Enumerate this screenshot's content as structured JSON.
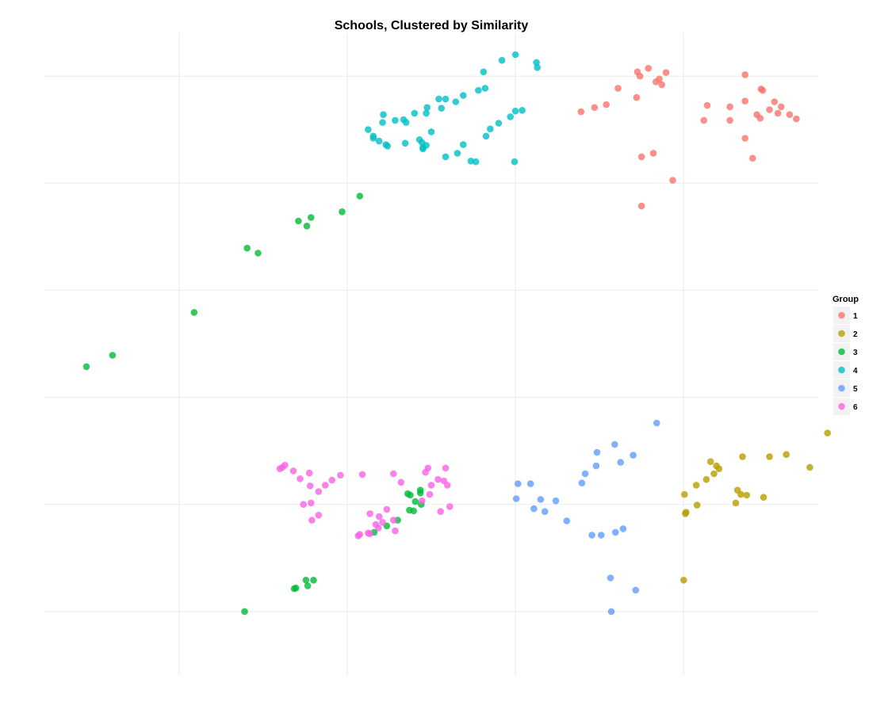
{
  "chart_data": {
    "type": "scatter",
    "title": "Schools, Clustered by Similarity",
    "xlabel": "",
    "ylabel": "",
    "xlim": [
      -4.6,
      4.6
    ],
    "ylim": [
      -4.4,
      4.6
    ],
    "grid": true,
    "x_gridlines": [
      -3,
      -1,
      1,
      3
    ],
    "y_gridlines": [
      -3.5,
      -2,
      -0.5,
      1,
      2.5,
      4
    ],
    "legend": {
      "title": "Group",
      "position": "right",
      "entries": [
        {
          "label": "1",
          "color": "#F8766D"
        },
        {
          "label": "2",
          "color": "#B79F00"
        },
        {
          "label": "3",
          "color": "#00BA38"
        },
        {
          "label": "4",
          "color": "#00BFC4"
        },
        {
          "label": "5",
          "color": "#619CFF"
        },
        {
          "label": "6",
          "color": "#F564E3"
        }
      ]
    },
    "series": [
      {
        "name": "1",
        "color": "#F8766D",
        "points": [
          [
            2.45,
            4.06
          ],
          [
            2.58,
            4.11
          ],
          [
            2.48,
            4.0
          ],
          [
            2.79,
            4.05
          ],
          [
            2.71,
            3.96
          ],
          [
            2.67,
            3.92
          ],
          [
            2.74,
            3.88
          ],
          [
            2.22,
            3.83
          ],
          [
            2.44,
            3.7
          ],
          [
            2.08,
            3.6
          ],
          [
            1.94,
            3.56
          ],
          [
            1.78,
            3.5
          ],
          [
            2.5,
            2.87
          ],
          [
            2.64,
            2.92
          ],
          [
            2.87,
            2.54
          ],
          [
            2.5,
            2.18
          ],
          [
            3.73,
            4.02
          ],
          [
            3.92,
            3.82
          ],
          [
            3.94,
            3.8
          ],
          [
            3.73,
            3.65
          ],
          [
            4.08,
            3.64
          ],
          [
            4.16,
            3.57
          ],
          [
            4.02,
            3.53
          ],
          [
            3.28,
            3.59
          ],
          [
            3.55,
            3.57
          ],
          [
            3.87,
            3.46
          ],
          [
            3.91,
            3.41
          ],
          [
            4.12,
            3.48
          ],
          [
            4.26,
            3.46
          ],
          [
            4.34,
            3.4
          ],
          [
            3.55,
            3.38
          ],
          [
            3.24,
            3.38
          ],
          [
            3.73,
            3.13
          ],
          [
            3.82,
            2.85
          ]
        ]
      },
      {
        "name": "2",
        "color": "#B79F00",
        "points": [
          [
            4.71,
            -1.0
          ],
          [
            4.22,
            -1.3
          ],
          [
            4.02,
            -1.33
          ],
          [
            3.7,
            -1.33
          ],
          [
            4.5,
            -1.48
          ],
          [
            3.32,
            -1.4
          ],
          [
            3.39,
            -1.46
          ],
          [
            3.42,
            -1.5
          ],
          [
            3.36,
            -1.57
          ],
          [
            3.27,
            -1.65
          ],
          [
            3.15,
            -1.73
          ],
          [
            3.01,
            -1.86
          ],
          [
            3.64,
            -1.8
          ],
          [
            3.68,
            -1.86
          ],
          [
            3.75,
            -1.87
          ],
          [
            3.95,
            -1.9
          ],
          [
            3.62,
            -1.98
          ],
          [
            3.16,
            -2.01
          ],
          [
            3.03,
            -2.11
          ],
          [
            3.02,
            -2.13
          ],
          [
            3.0,
            -3.06
          ]
        ]
      },
      {
        "name": "3",
        "color": "#00BA38",
        "points": [
          [
            -4.1,
            -0.07
          ],
          [
            -3.79,
            0.09
          ],
          [
            -2.82,
            0.69
          ],
          [
            -2.19,
            1.59
          ],
          [
            -2.06,
            1.52
          ],
          [
            -1.58,
            1.97
          ],
          [
            -1.48,
            1.9
          ],
          [
            -1.43,
            2.02
          ],
          [
            -1.06,
            2.1
          ],
          [
            -0.85,
            2.32
          ],
          [
            -0.13,
            -1.8
          ],
          [
            -0.13,
            -1.84
          ],
          [
            -0.19,
            -1.96
          ],
          [
            -0.25,
            -1.87
          ],
          [
            -0.28,
            -1.85
          ],
          [
            -0.26,
            -2.08
          ],
          [
            -0.12,
            -2.0
          ],
          [
            -0.21,
            -2.09
          ],
          [
            -0.4,
            -2.22
          ],
          [
            -0.53,
            -2.3
          ],
          [
            -0.68,
            -2.39
          ],
          [
            -1.4,
            -3.06
          ],
          [
            -1.49,
            -3.06
          ],
          [
            -1.47,
            -3.14
          ],
          [
            -1.61,
            -3.17
          ],
          [
            -1.63,
            -3.18
          ],
          [
            -2.22,
            -3.5
          ]
        ]
      },
      {
        "name": "4",
        "color": "#00BFC4",
        "points": [
          [
            1.0,
            4.3
          ],
          [
            0.84,
            4.22
          ],
          [
            0.62,
            4.06
          ],
          [
            0.64,
            3.83
          ],
          [
            0.56,
            3.8
          ],
          [
            0.38,
            3.73
          ],
          [
            0.29,
            3.64
          ],
          [
            0.09,
            3.68
          ],
          [
            0.17,
            3.68
          ],
          [
            0.12,
            3.55
          ],
          [
            -0.05,
            3.56
          ],
          [
            -0.06,
            3.48
          ],
          [
            -0.2,
            3.48
          ],
          [
            -0.33,
            3.39
          ],
          [
            -0.57,
            3.46
          ],
          [
            -0.43,
            3.38
          ],
          [
            -0.58,
            3.35
          ],
          [
            -0.75,
            3.25
          ],
          [
            -0.3,
            3.35
          ],
          [
            0.0,
            3.22
          ],
          [
            -0.14,
            3.11
          ],
          [
            -0.31,
            3.06
          ],
          [
            -0.11,
            3.07
          ],
          [
            -0.06,
            3.03
          ],
          [
            -0.1,
            3.0
          ],
          [
            -0.1,
            2.98
          ],
          [
            -0.69,
            3.16
          ],
          [
            -0.69,
            3.13
          ],
          [
            -0.62,
            3.09
          ],
          [
            -0.54,
            3.04
          ],
          [
            -0.52,
            3.02
          ],
          [
            1.25,
            4.19
          ],
          [
            1.26,
            4.12
          ],
          [
            1.08,
            3.52
          ],
          [
            1.0,
            3.51
          ],
          [
            0.94,
            3.43
          ],
          [
            0.8,
            3.34
          ],
          [
            0.7,
            3.26
          ],
          [
            0.65,
            3.16
          ],
          [
            0.38,
            3.04
          ],
          [
            0.31,
            2.92
          ],
          [
            0.17,
            2.87
          ],
          [
            0.53,
            2.8
          ],
          [
            0.47,
            2.81
          ],
          [
            0.99,
            2.8
          ]
        ]
      },
      {
        "name": "5",
        "color": "#619CFF",
        "points": [
          [
            2.68,
            -0.86
          ],
          [
            2.18,
            -1.16
          ],
          [
            1.97,
            -1.27
          ],
          [
            2.4,
            -1.31
          ],
          [
            2.25,
            -1.41
          ],
          [
            1.96,
            -1.46
          ],
          [
            1.83,
            -1.57
          ],
          [
            1.03,
            -1.71
          ],
          [
            1.18,
            -1.71
          ],
          [
            1.01,
            -1.92
          ],
          [
            1.3,
            -1.93
          ],
          [
            1.48,
            -1.95
          ],
          [
            1.79,
            -1.7
          ],
          [
            1.22,
            -2.06
          ],
          [
            1.35,
            -2.1
          ],
          [
            1.61,
            -2.23
          ],
          [
            2.28,
            -2.34
          ],
          [
            2.19,
            -2.39
          ],
          [
            2.02,
            -2.43
          ],
          [
            1.91,
            -2.43
          ],
          [
            2.13,
            -3.03
          ],
          [
            2.43,
            -3.2
          ],
          [
            2.14,
            -3.5
          ]
        ]
      },
      {
        "name": "6",
        "color": "#F564E3",
        "points": [
          [
            -0.66,
            -2.28
          ],
          [
            -0.75,
            -2.4
          ],
          [
            -0.63,
            -2.33
          ],
          [
            -0.73,
            -2.41
          ],
          [
            -0.87,
            -2.44
          ],
          [
            -0.85,
            -2.42
          ],
          [
            -0.43,
            -2.37
          ],
          [
            -0.58,
            -2.25
          ],
          [
            -0.45,
            -2.22
          ],
          [
            -0.73,
            -2.13
          ],
          [
            -0.62,
            -2.17
          ],
          [
            -0.53,
            -2.07
          ],
          [
            -0.82,
            -1.58
          ],
          [
            -0.45,
            -1.57
          ],
          [
            -0.11,
            -1.95
          ],
          [
            0.11,
            -2.1
          ],
          [
            0.22,
            -2.03
          ],
          [
            0.0,
            -1.73
          ],
          [
            -0.36,
            -1.69
          ],
          [
            -0.02,
            -1.86
          ],
          [
            -0.07,
            -1.55
          ],
          [
            0.17,
            -1.49
          ],
          [
            0.15,
            -1.67
          ],
          [
            0.19,
            -1.73
          ],
          [
            0.08,
            -1.65
          ],
          [
            -0.04,
            -1.49
          ],
          [
            -1.8,
            -1.5
          ],
          [
            -1.74,
            -1.45
          ],
          [
            -1.64,
            -1.53
          ],
          [
            -1.56,
            -1.64
          ],
          [
            -1.44,
            -1.74
          ],
          [
            -1.45,
            -1.56
          ],
          [
            -1.34,
            -1.82
          ],
          [
            -1.26,
            -1.73
          ],
          [
            -1.18,
            -1.66
          ],
          [
            -1.08,
            -1.59
          ],
          [
            -1.77,
            -1.48
          ],
          [
            -1.43,
            -1.98
          ],
          [
            -1.52,
            -2.0
          ],
          [
            -1.34,
            -2.15
          ],
          [
            -1.42,
            -2.22
          ]
        ]
      }
    ]
  }
}
